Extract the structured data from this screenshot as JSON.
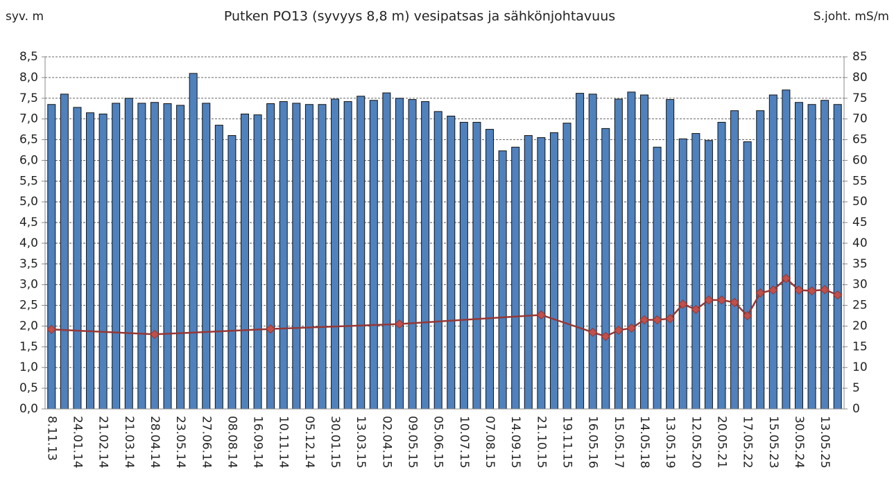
{
  "chart_data": {
    "type": "bar_line",
    "title": "Putken PO13 (syvyys 8,8 m)  vesipatsas ja sähkönjohtavuus",
    "ylabel": "syv. m",
    "y2label": "S.joht. mS/m",
    "categories": [
      "8.11.13",
      null,
      "24.01.14",
      null,
      "21.02.14",
      null,
      "21.03.14",
      null,
      "28.04.14",
      null,
      "23.05.14",
      null,
      "27.06.14",
      null,
      "08.08.14",
      null,
      "16.09.14",
      null,
      "10.11.14",
      null,
      "05.12.14",
      null,
      "30.01.15",
      null,
      "13.03.15",
      null,
      "02.04.15",
      null,
      "09.05.15",
      null,
      "05.06.15",
      null,
      "10.07.15",
      null,
      "07.08.15",
      null,
      "14.09.15",
      null,
      "21.10.15",
      null,
      "19.11.15",
      null,
      "16.05.16",
      null,
      "15.05.17",
      null,
      "14.05.18",
      null,
      "13.05.19",
      null,
      "12.05.20",
      null,
      "20.05.21",
      null,
      "17.05.22",
      null,
      "15.05.23",
      null,
      "30.05.24",
      null,
      "13.05.25",
      null
    ],
    "series": [
      {
        "type": "bar",
        "color": "#4f81bd",
        "values": [
          7.35,
          7.6,
          7.28,
          7.15,
          7.12,
          7.38,
          7.5,
          7.38,
          7.4,
          7.37,
          7.33,
          8.1,
          7.38,
          6.85,
          6.6,
          7.12,
          7.1,
          7.37,
          7.42,
          7.38,
          7.35,
          7.35,
          7.48,
          7.42,
          7.55,
          7.45,
          7.63,
          7.5,
          7.47,
          7.42,
          7.18,
          7.07,
          6.92,
          6.92,
          6.75,
          6.23,
          6.32,
          6.6,
          6.55,
          6.67,
          6.9,
          7.62,
          7.6,
          6.77,
          7.48,
          7.65,
          7.58,
          6.32,
          7.47,
          6.52,
          6.65,
          6.48,
          6.92,
          7.2,
          6.45,
          7.2,
          7.58,
          7.7,
          7.4,
          7.35,
          7.45,
          7.35
        ]
      },
      {
        "type": "line",
        "axis": "y2",
        "color": "#953735",
        "marker_color": "#c0504d",
        "span_gaps": true,
        "values": [
          19.2,
          null,
          null,
          null,
          null,
          null,
          null,
          null,
          18,
          null,
          null,
          null,
          null,
          null,
          null,
          null,
          null,
          19.3,
          null,
          null,
          null,
          null,
          null,
          null,
          null,
          null,
          null,
          20.5,
          null,
          null,
          null,
          null,
          null,
          null,
          null,
          null,
          null,
          null,
          22.7,
          null,
          null,
          null,
          18.5,
          17.5,
          19,
          19.5,
          21.5,
          21.5,
          21.8,
          25.3,
          24,
          26.3,
          26.3,
          25.7,
          22.5,
          28,
          28.7,
          31.5,
          28.7,
          28.5,
          28.8,
          27.5
        ]
      }
    ],
    "ylim": [
      0,
      8.5
    ],
    "yticks": [
      {
        "value": 0,
        "label": "0,0"
      },
      {
        "value": 0.5,
        "label": "0,5"
      },
      {
        "value": 1,
        "label": "1,0"
      },
      {
        "value": 1.5,
        "label": "1,5"
      },
      {
        "value": 2,
        "label": "2,0"
      },
      {
        "value": 2.5,
        "label": "2,5"
      },
      {
        "value": 3,
        "label": "3,0"
      },
      {
        "value": 3.5,
        "label": "3,5"
      },
      {
        "value": 4,
        "label": "4,0"
      },
      {
        "value": 4.5,
        "label": "4,5"
      },
      {
        "value": 5,
        "label": "5,0"
      },
      {
        "value": 5.5,
        "label": "5,5"
      },
      {
        "value": 6,
        "label": "6,0"
      },
      {
        "value": 6.5,
        "label": "6,5"
      },
      {
        "value": 7,
        "label": "7,0"
      },
      {
        "value": 7.5,
        "label": "7,5"
      },
      {
        "value": 8,
        "label": "8,0"
      },
      {
        "value": 8.5,
        "label": "8,5"
      }
    ],
    "y2lim": [
      0,
      85
    ],
    "y2ticks": [
      0,
      5,
      10,
      15,
      20,
      25,
      30,
      35,
      40,
      45,
      50,
      55,
      60,
      65,
      70,
      75,
      80,
      85
    ],
    "grid": true
  }
}
